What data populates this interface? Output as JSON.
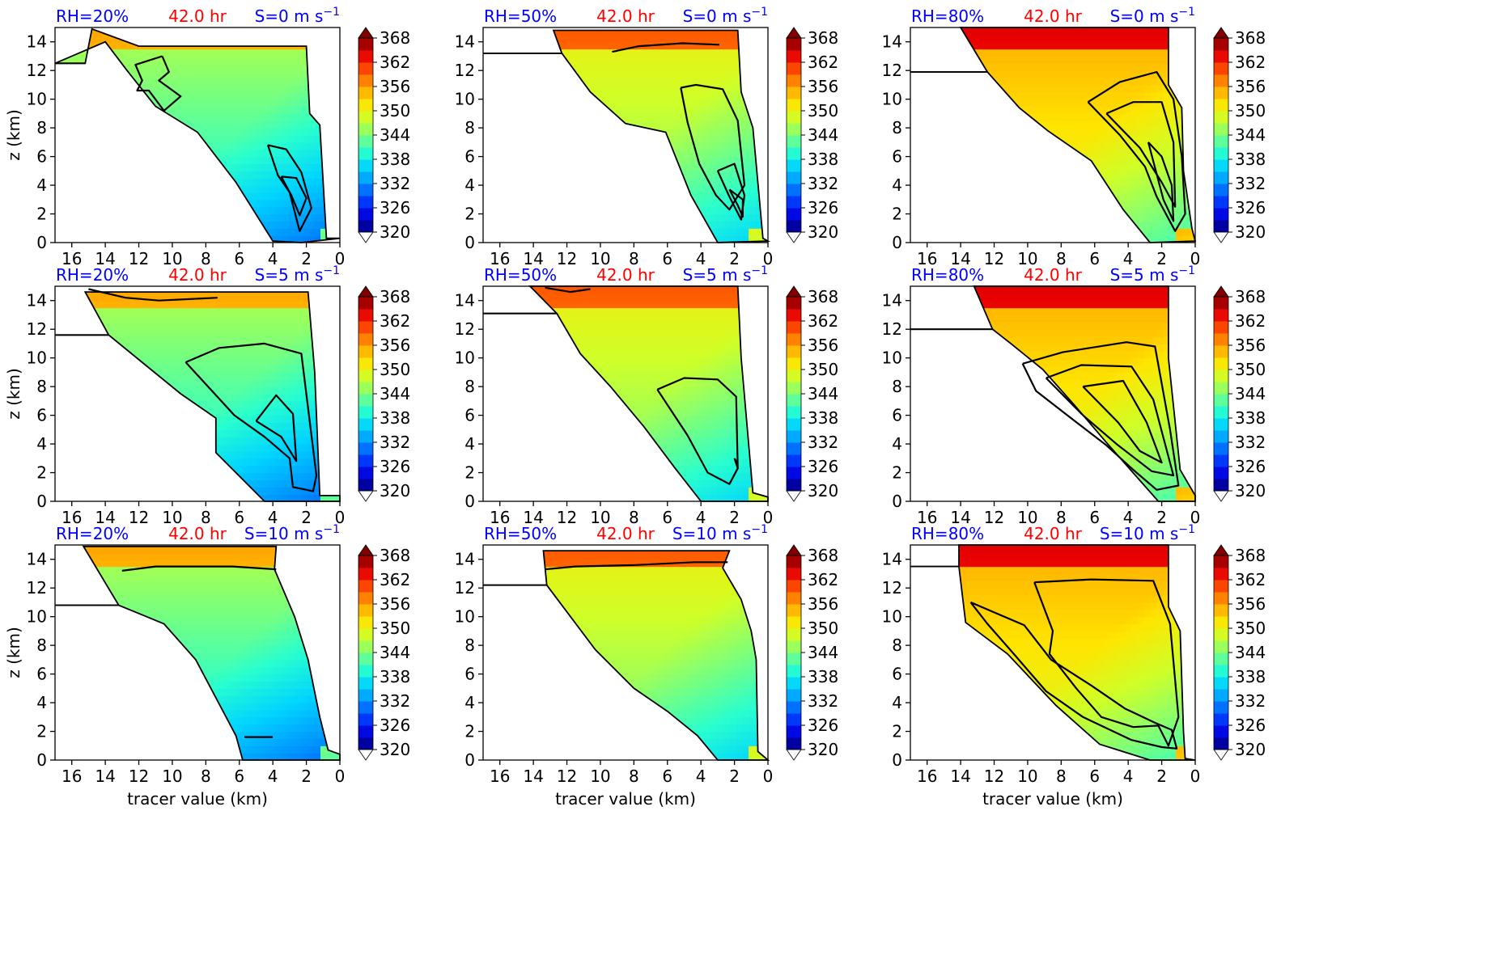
{
  "figure": {
    "xlabel": "tracer value (km)",
    "ylabel": "z (km)"
  },
  "colorbar": {
    "ticks": [
      "368",
      "362",
      "356",
      "350",
      "344",
      "338",
      "332",
      "326",
      "320"
    ],
    "range": [
      320,
      368
    ],
    "colormap": [
      "#00007f",
      "#0000e0",
      "#0040ff",
      "#0090ff",
      "#00d4ff",
      "#29ffce",
      "#7dff7a",
      "#ceff29",
      "#ffe500",
      "#ff9e00",
      "#ff5000",
      "#e80000",
      "#7f0000"
    ]
  },
  "chart_data": [
    {
      "type": "heatmap",
      "panel": "r0c0",
      "title_rh": "RH=20%",
      "title_time": "42.0 hr",
      "title_shear": "S=0 m s",
      "title_shear_sup": "−1",
      "xlim": [
        17,
        0
      ],
      "ylim": [
        0,
        15
      ],
      "xticks": [
        "16",
        "14",
        "12",
        "10",
        "8",
        "6",
        "4",
        "2",
        "0"
      ],
      "yticks": [
        "0",
        "2",
        "4",
        "6",
        "8",
        "10",
        "12",
        "14"
      ],
      "show_xlabel": false,
      "show_ylabel": true,
      "colors": {
        "rh": "#0000ff",
        "time": "#ff0000",
        "shear": "#0000ff"
      }
    },
    {
      "type": "heatmap",
      "panel": "r0c1",
      "title_rh": "RH=50%",
      "title_time": "42.0 hr",
      "title_shear": "S=0 m s",
      "title_shear_sup": "−1",
      "xlim": [
        17,
        0
      ],
      "ylim": [
        0,
        15
      ],
      "xticks": [
        "16",
        "14",
        "12",
        "10",
        "8",
        "6",
        "4",
        "2",
        "0"
      ],
      "yticks": [
        "0",
        "2",
        "4",
        "6",
        "8",
        "10",
        "12",
        "14"
      ],
      "show_xlabel": false,
      "show_ylabel": false,
      "colors": {
        "rh": "#0000ff",
        "time": "#ff0000",
        "shear": "#0000ff"
      }
    },
    {
      "type": "heatmap",
      "panel": "r0c2",
      "title_rh": "RH=80%",
      "title_time": "42.0 hr",
      "title_shear": "S=0 m s",
      "title_shear_sup": "−1",
      "xlim": [
        17,
        0
      ],
      "ylim": [
        0,
        15
      ],
      "xticks": [
        "16",
        "14",
        "12",
        "10",
        "8",
        "6",
        "4",
        "2",
        "0"
      ],
      "yticks": [
        "0",
        "2",
        "4",
        "6",
        "8",
        "10",
        "12",
        "14"
      ],
      "show_xlabel": false,
      "show_ylabel": false,
      "colors": {
        "rh": "#0000ff",
        "time": "#ff0000",
        "shear": "#0000ff"
      }
    },
    {
      "type": "heatmap",
      "panel": "r1c0",
      "title_rh": "RH=20%",
      "title_time": "42.0 hr",
      "title_shear": "S=5 m s",
      "title_shear_sup": "−1",
      "xlim": [
        17,
        0
      ],
      "ylim": [
        0,
        15
      ],
      "xticks": [
        "16",
        "14",
        "12",
        "10",
        "8",
        "6",
        "4",
        "2",
        "0"
      ],
      "yticks": [
        "0",
        "2",
        "4",
        "6",
        "8",
        "10",
        "12",
        "14"
      ],
      "show_xlabel": false,
      "show_ylabel": true,
      "colors": {
        "rh": "#0000ff",
        "time": "#ff0000",
        "shear": "#0000ff"
      }
    },
    {
      "type": "heatmap",
      "panel": "r1c1",
      "title_rh": "RH=50%",
      "title_time": "42.0 hr",
      "title_shear": "S=5 m s",
      "title_shear_sup": "−1",
      "xlim": [
        17,
        0
      ],
      "ylim": [
        0,
        15
      ],
      "xticks": [
        "16",
        "14",
        "12",
        "10",
        "8",
        "6",
        "4",
        "2",
        "0"
      ],
      "yticks": [
        "0",
        "2",
        "4",
        "6",
        "8",
        "10",
        "12",
        "14"
      ],
      "show_xlabel": false,
      "show_ylabel": false,
      "colors": {
        "rh": "#0000ff",
        "time": "#ff0000",
        "shear": "#0000ff"
      }
    },
    {
      "type": "heatmap",
      "panel": "r1c2",
      "title_rh": "RH=80%",
      "title_time": "42.0 hr",
      "title_shear": "S=5 m s",
      "title_shear_sup": "−1",
      "xlim": [
        17,
        0
      ],
      "ylim": [
        0,
        15
      ],
      "xticks": [
        "16",
        "14",
        "12",
        "10",
        "8",
        "6",
        "4",
        "2",
        "0"
      ],
      "yticks": [
        "0",
        "2",
        "4",
        "6",
        "8",
        "10",
        "12",
        "14"
      ],
      "show_xlabel": false,
      "show_ylabel": false,
      "colors": {
        "rh": "#0000ff",
        "time": "#ff0000",
        "shear": "#0000ff"
      }
    },
    {
      "type": "heatmap",
      "panel": "r2c0",
      "title_rh": "RH=20%",
      "title_time": "42.0 hr",
      "title_shear": "S=10 m s",
      "title_shear_sup": "−1",
      "xlim": [
        17,
        0
      ],
      "ylim": [
        0,
        15
      ],
      "xticks": [
        "16",
        "14",
        "12",
        "10",
        "8",
        "6",
        "4",
        "2",
        "0"
      ],
      "yticks": [
        "0",
        "2",
        "4",
        "6",
        "8",
        "10",
        "12",
        "14"
      ],
      "show_xlabel": true,
      "show_ylabel": true,
      "colors": {
        "rh": "#0000ff",
        "time": "#ff0000",
        "shear": "#0000ff"
      }
    },
    {
      "type": "heatmap",
      "panel": "r2c1",
      "title_rh": "RH=50%",
      "title_time": "42.0 hr",
      "title_shear": "S=10 m s",
      "title_shear_sup": "−1",
      "xlim": [
        17,
        0
      ],
      "ylim": [
        0,
        15
      ],
      "xticks": [
        "16",
        "14",
        "12",
        "10",
        "8",
        "6",
        "4",
        "2",
        "0"
      ],
      "yticks": [
        "0",
        "2",
        "4",
        "6",
        "8",
        "10",
        "12",
        "14"
      ],
      "show_xlabel": true,
      "show_ylabel": false,
      "colors": {
        "rh": "#0000ff",
        "time": "#ff0000",
        "shear": "#0000ff"
      }
    },
    {
      "type": "heatmap",
      "panel": "r2c2",
      "title_rh": "RH=80%",
      "title_time": "42.0 hr",
      "title_shear": "S=10 m s",
      "title_shear_sup": "−1",
      "xlim": [
        17,
        0
      ],
      "ylim": [
        0,
        15
      ],
      "xticks": [
        "16",
        "14",
        "12",
        "10",
        "8",
        "6",
        "4",
        "2",
        "0"
      ],
      "yticks": [
        "0",
        "2",
        "4",
        "6",
        "8",
        "10",
        "12",
        "14"
      ],
      "show_xlabel": true,
      "show_ylabel": false,
      "colors": {
        "rh": "#0000ff",
        "time": "#ff0000",
        "shear": "#0000ff"
      }
    }
  ]
}
